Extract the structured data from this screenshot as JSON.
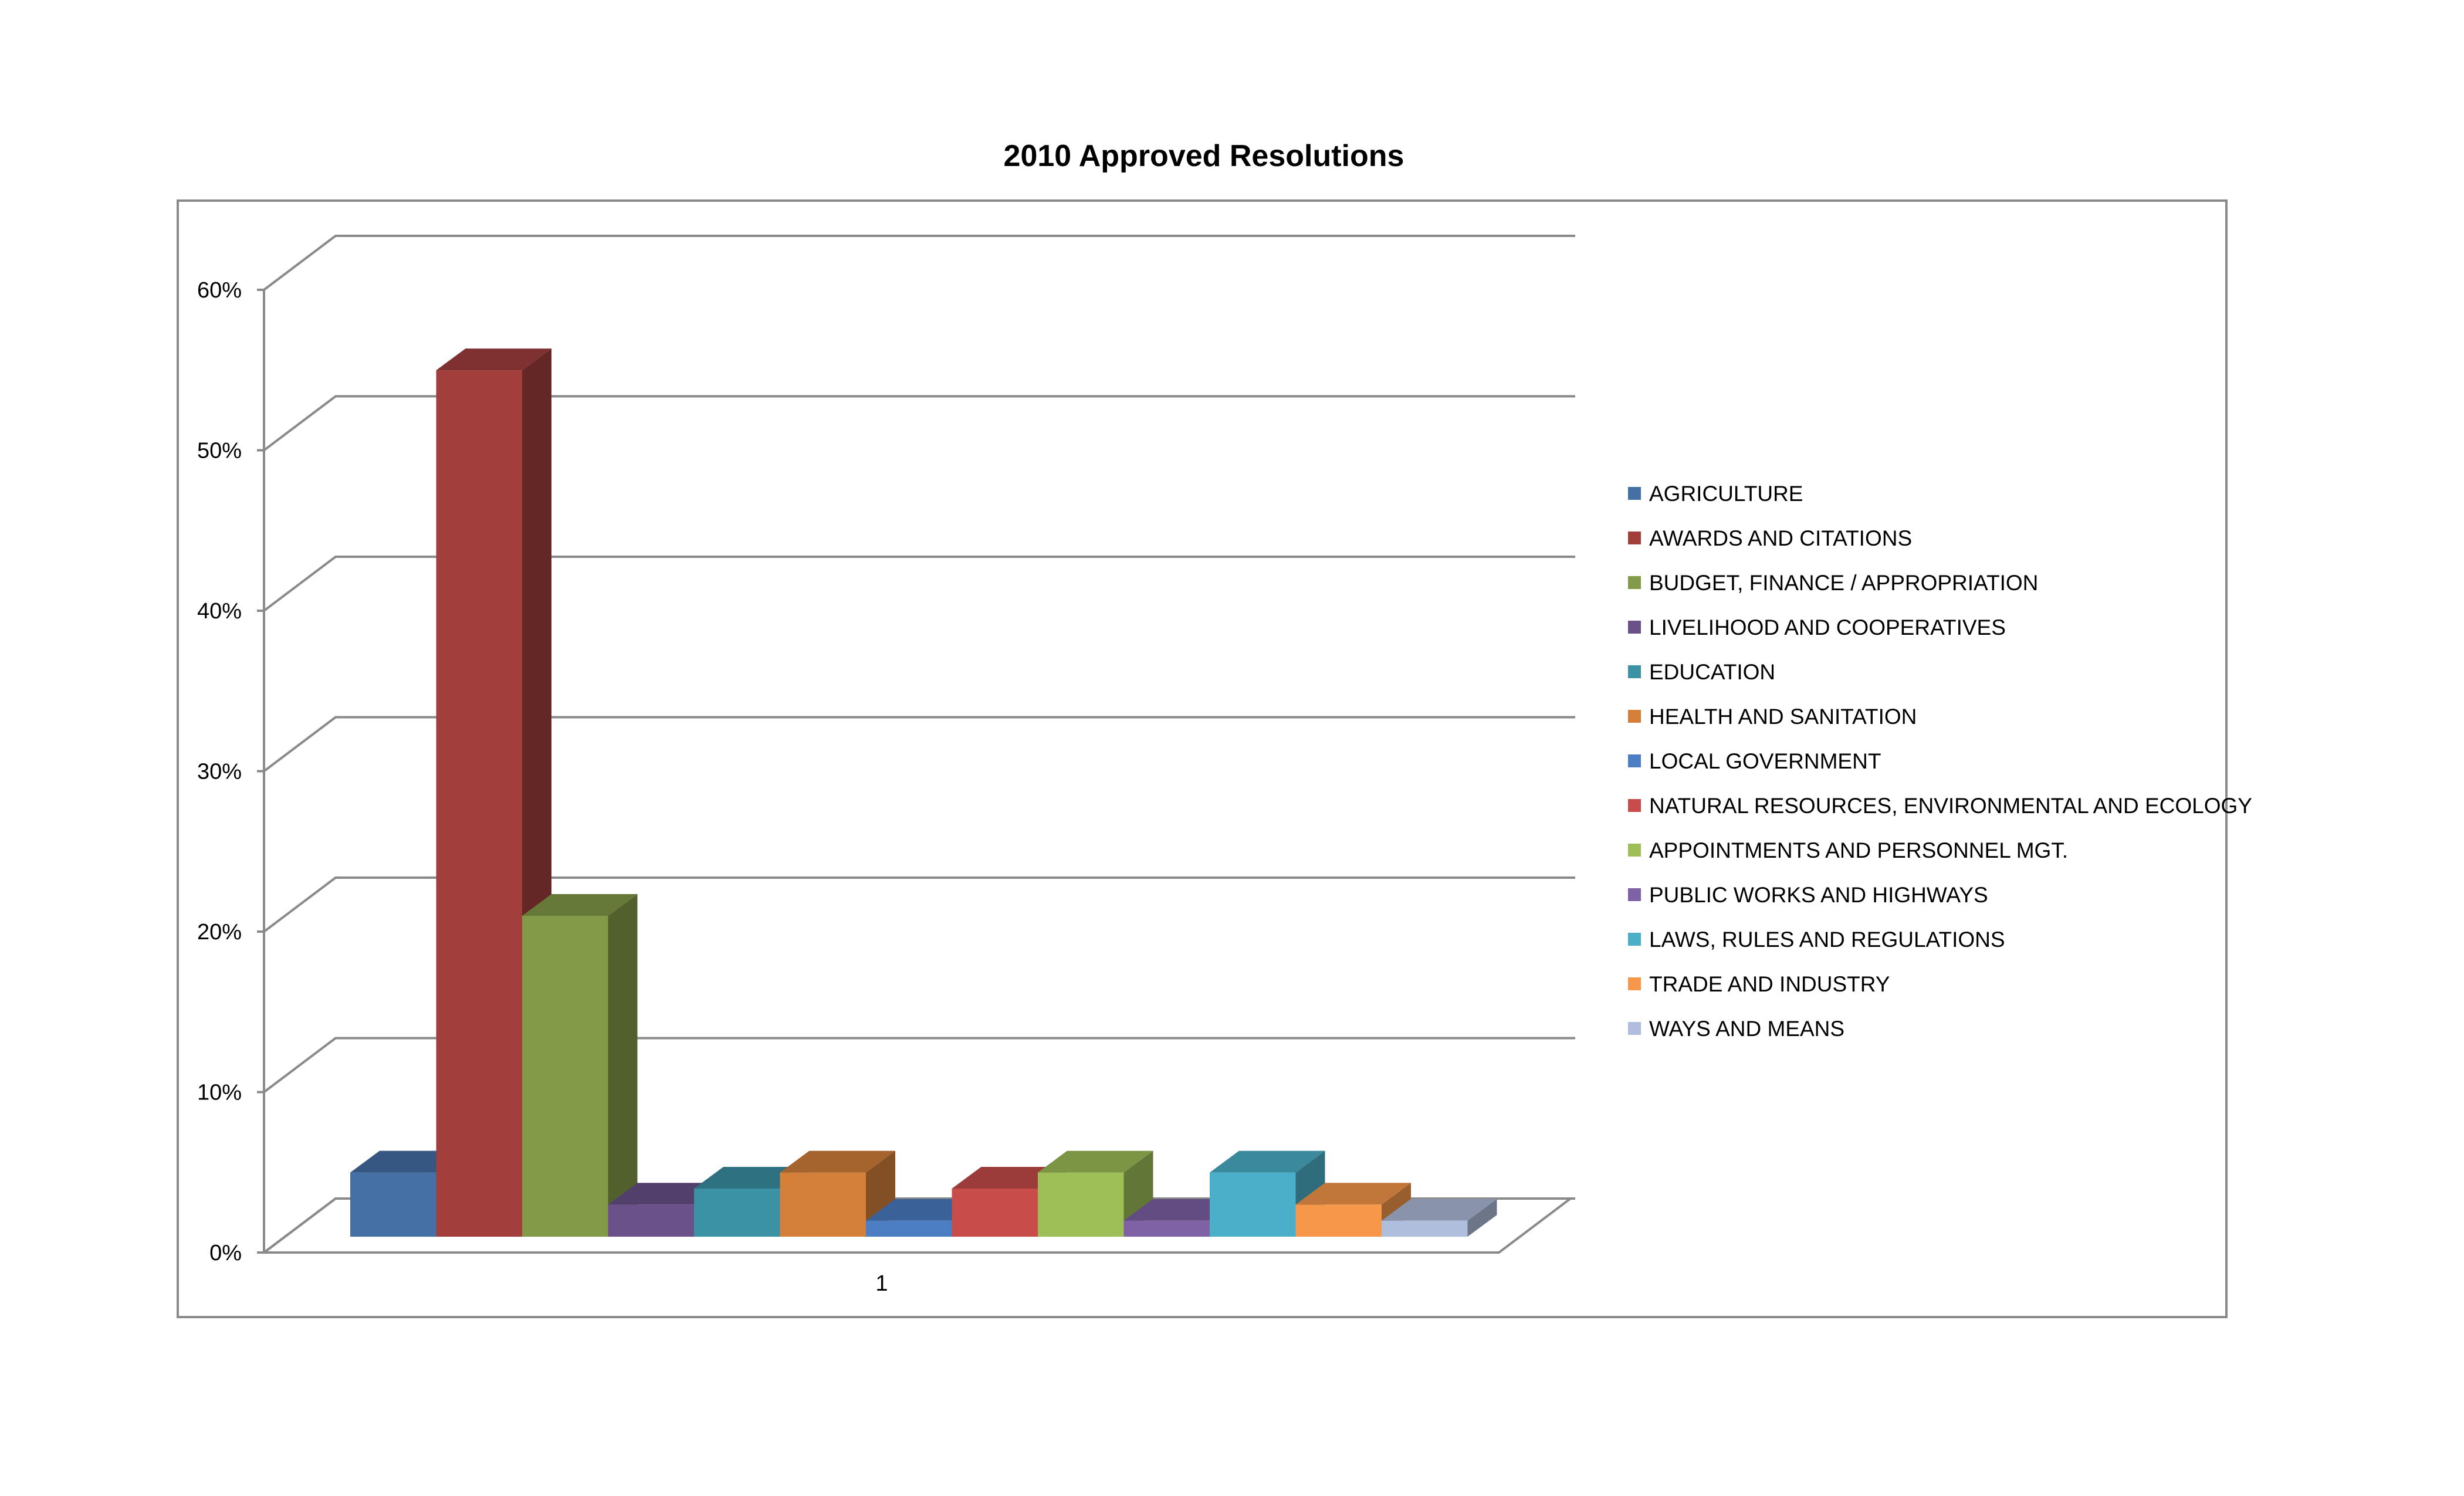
{
  "chart_data": {
    "type": "bar",
    "title": "2010 Approved Resolutions",
    "categories": [
      "1"
    ],
    "ylim": [
      0,
      60
    ],
    "yticks": [
      "0%",
      "10%",
      "20%",
      "30%",
      "40%",
      "50%",
      "60%"
    ],
    "grid": true,
    "legend_position": "right",
    "series": [
      {
        "name": "AGRICULTURE",
        "values": [
          4
        ],
        "color": "#4470A6"
      },
      {
        "name": "AWARDS AND CITATIONS",
        "values": [
          54
        ],
        "color": "#A23F3D"
      },
      {
        "name": "BUDGET, FINANCE / APPROPRIATION",
        "values": [
          20
        ],
        "color": "#839B48"
      },
      {
        "name": "LIVELIHOOD AND COOPERATIVES",
        "values": [
          2
        ],
        "color": "#6B5189"
      },
      {
        "name": "EDUCATION",
        "values": [
          3
        ],
        "color": "#3B92A5"
      },
      {
        "name": "HEALTH AND SANITATION",
        "values": [
          4
        ],
        "color": "#D47F3A"
      },
      {
        "name": "LOCAL GOVERNMENT",
        "values": [
          1
        ],
        "color": "#4C7EC3"
      },
      {
        "name": "NATURAL RESOURCES, ENVIRONMENTAL AND ECOLOGY",
        "values": [
          3
        ],
        "color": "#C84D4A"
      },
      {
        "name": "APPOINTMENTS AND PERSONNEL MGT.",
        "values": [
          4
        ],
        "color": "#9EBF58"
      },
      {
        "name": "PUBLIC WORKS AND HIGHWAYS",
        "values": [
          1
        ],
        "color": "#7F62A6"
      },
      {
        "name": "LAWS, RULES AND REGULATIONS",
        "values": [
          4
        ],
        "color": "#4BAFC9"
      },
      {
        "name": "TRADE AND INDUSTRY",
        "values": [
          2
        ],
        "color": "#F7974A"
      },
      {
        "name": "WAYS AND MEANS",
        "values": [
          1
        ],
        "color": "#AFBEDC"
      }
    ]
  }
}
